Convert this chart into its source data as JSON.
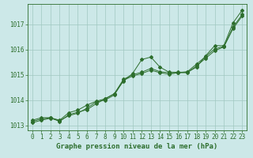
{
  "background_color": "#cce8e8",
  "plot_bg_color": "#cce8e8",
  "grid_color": "#a0c8c0",
  "line_color": "#2d6e2d",
  "title": "Graphe pression niveau de la mer (hPa)",
  "xlim": [
    -0.5,
    23.5
  ],
  "ylim": [
    1012.8,
    1017.8
  ],
  "yticks": [
    1013,
    1014,
    1015,
    1016,
    1017
  ],
  "xticks": [
    0,
    1,
    2,
    3,
    4,
    5,
    6,
    7,
    8,
    9,
    10,
    11,
    12,
    13,
    14,
    15,
    16,
    17,
    18,
    19,
    20,
    21,
    22,
    23
  ],
  "line1_x": [
    0,
    1,
    2,
    3,
    4,
    5,
    6,
    7,
    8,
    9,
    10,
    11,
    12,
    13,
    14,
    15,
    16,
    17,
    18,
    19,
    20,
    21,
    22,
    23
  ],
  "line1_y": [
    1013.2,
    1013.3,
    1013.3,
    1013.2,
    1013.5,
    1013.6,
    1013.8,
    1013.95,
    1014.05,
    1014.25,
    1014.75,
    1015.05,
    1015.6,
    1015.7,
    1015.3,
    1015.1,
    1015.1,
    1015.1,
    1015.3,
    1015.75,
    1016.15,
    1016.15,
    1017.05,
    1017.55
  ],
  "line2_x": [
    0,
    1,
    2,
    3,
    4,
    5,
    6,
    7,
    8,
    9,
    10,
    11,
    12,
    13,
    14,
    15,
    16,
    17,
    18,
    19,
    20,
    21,
    22,
    23
  ],
  "line2_y": [
    1013.15,
    1013.25,
    1013.3,
    1013.15,
    1013.42,
    1013.52,
    1013.62,
    1013.85,
    1014.05,
    1014.25,
    1014.82,
    1015.0,
    1015.1,
    1015.25,
    1015.12,
    1015.08,
    1015.08,
    1015.12,
    1015.42,
    1015.72,
    1016.02,
    1016.12,
    1016.88,
    1017.38
  ],
  "line3_x": [
    0,
    1,
    2,
    3,
    4,
    5,
    6,
    7,
    8,
    9,
    10,
    11,
    12,
    13,
    14,
    15,
    16,
    17,
    18,
    19,
    20,
    21,
    22,
    23
  ],
  "line3_y": [
    1013.1,
    1013.2,
    1013.28,
    1013.18,
    1013.38,
    1013.48,
    1013.68,
    1013.92,
    1014.0,
    1014.2,
    1014.78,
    1014.95,
    1015.05,
    1015.18,
    1015.08,
    1015.02,
    1015.08,
    1015.08,
    1015.35,
    1015.65,
    1015.95,
    1016.1,
    1016.82,
    1017.32
  ]
}
